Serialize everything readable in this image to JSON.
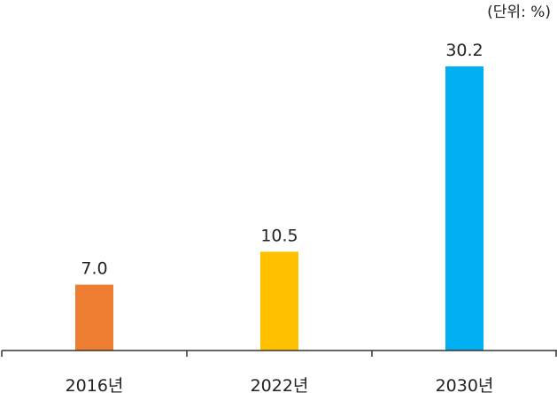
{
  "chart_data": {
    "type": "bar",
    "unit_label": "(단위: %)",
    "categories": [
      "2016년",
      "2022년",
      "2030년"
    ],
    "values": [
      7.0,
      10.5,
      30.2
    ],
    "value_labels": [
      "7.0",
      "10.5",
      "30.2"
    ],
    "colors": [
      "#ED7D31",
      "#FFC000",
      "#00B0F0"
    ],
    "title": "",
    "xlabel": "",
    "ylabel": "",
    "ylim": [
      0,
      30.2
    ],
    "grid": false,
    "legend": "none"
  }
}
